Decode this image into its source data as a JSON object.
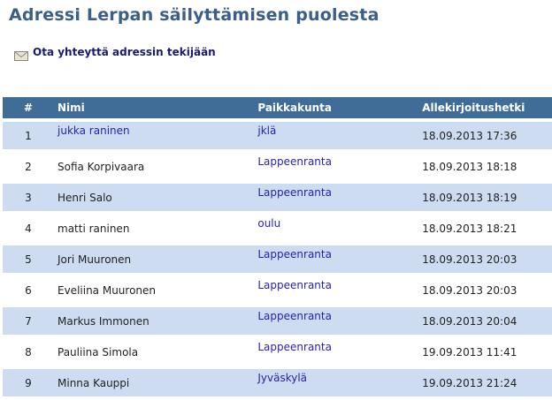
{
  "page": {
    "title": "Adressi Lerpan säilyttämisen puolesta",
    "contact_link": "Ota yhteyttä adressin tekijään",
    "contact_icon": "envelope-icon"
  },
  "table": {
    "headers": [
      "#",
      "Nimi",
      "Paikkakunta",
      "Allekirjoitushetki"
    ],
    "rows": [
      {
        "num": "1",
        "name": "jukka raninen",
        "name_link": true,
        "city": "jklä",
        "time": "18.09.2013 17:36"
      },
      {
        "num": "2",
        "name": "Sofia Korpivaara",
        "name_link": false,
        "city": "Lappeenranta",
        "time": "18.09.2013 18:18"
      },
      {
        "num": "3",
        "name": "Henri Salo",
        "name_link": false,
        "city": "Lappeenranta",
        "time": "18.09.2013 18:19"
      },
      {
        "num": "4",
        "name": "matti raninen",
        "name_link": false,
        "city": "oulu",
        "time": "18.09.2013 18:21"
      },
      {
        "num": "5",
        "name": "Jori Muuronen",
        "name_link": false,
        "city": "Lappeenranta",
        "time": "18.09.2013 20:03"
      },
      {
        "num": "6",
        "name": "Eveliina Muuronen",
        "name_link": false,
        "city": "Lappeenranta",
        "time": "18.09.2013 20:03"
      },
      {
        "num": "7",
        "name": "Markus Immonen",
        "name_link": false,
        "city": "Lappeenranta",
        "time": "18.09.2013 20:04"
      },
      {
        "num": "8",
        "name": "Pauliina Simola",
        "name_link": false,
        "city": "Lappeenranta",
        "time": "19.09.2013 11:41"
      },
      {
        "num": "9",
        "name": "Minna Kauppi",
        "name_link": false,
        "city": "Jyväskylä",
        "time": "19.09.2013 21:24"
      }
    ]
  },
  "colors": {
    "title": "#3b5f86",
    "header_bg": "#3f6d97",
    "row_alt_bg": "#cddcf1",
    "link": "#2a1fa8"
  }
}
